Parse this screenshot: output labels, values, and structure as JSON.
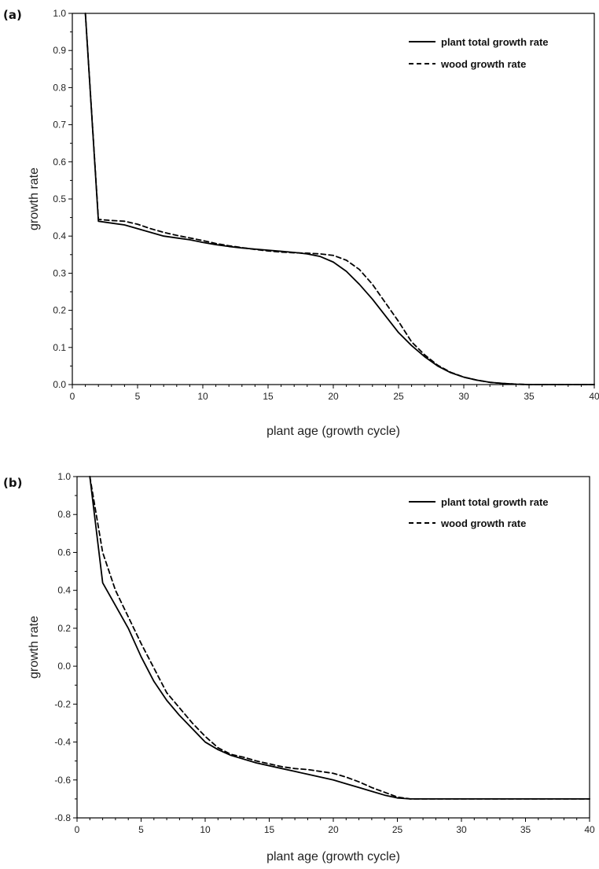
{
  "chart_data": [
    {
      "type": "line",
      "panel_label": "(a)",
      "xlabel": "plant age (growth cycle)",
      "ylabel": "growth rate",
      "xlim": [
        0,
        40
      ],
      "ylim": [
        0,
        1.0
      ],
      "xticks": [
        0,
        5,
        10,
        15,
        20,
        25,
        30,
        35,
        40
      ],
      "yticks": [
        0.0,
        0.1,
        0.2,
        0.3,
        0.4,
        0.5,
        0.6,
        0.7,
        0.8,
        0.9,
        1.0
      ],
      "ytick_labels": [
        "0.0",
        "0.1",
        "0.2",
        "0.3",
        "0.4",
        "0.5",
        "0.6",
        "0.7",
        "0.8",
        "0.9",
        "1.0"
      ],
      "grid": false,
      "legend_position": "top-right",
      "series": [
        {
          "name": "plant total growth rate",
          "style": "solid",
          "x": [
            1,
            2,
            3,
            4,
            5,
            6,
            7,
            8,
            9,
            10,
            11,
            12,
            13,
            14,
            15,
            16,
            17,
            18,
            19,
            20,
            21,
            22,
            23,
            24,
            25,
            26,
            27,
            28,
            29,
            30,
            31,
            32,
            33,
            34,
            35,
            36,
            37,
            38,
            39,
            40
          ],
          "y": [
            1.0,
            0.44,
            0.435,
            0.43,
            0.42,
            0.41,
            0.4,
            0.395,
            0.39,
            0.383,
            0.377,
            0.372,
            0.368,
            0.365,
            0.362,
            0.359,
            0.356,
            0.352,
            0.345,
            0.33,
            0.305,
            0.27,
            0.23,
            0.185,
            0.14,
            0.105,
            0.075,
            0.05,
            0.032,
            0.02,
            0.012,
            0.006,
            0.003,
            0.001,
            0.0,
            0.0,
            0.0,
            0.0,
            0.0,
            0.0
          ]
        },
        {
          "name": "wood growth rate",
          "style": "dashed",
          "x": [
            1,
            2,
            3,
            4,
            5,
            6,
            7,
            8,
            9,
            10,
            11,
            12,
            13,
            14,
            15,
            16,
            17,
            18,
            19,
            20,
            21,
            22,
            23,
            24,
            25,
            26,
            27,
            28,
            29,
            30,
            31,
            32,
            33,
            34,
            35,
            36,
            37,
            38,
            39,
            40
          ],
          "y": [
            1.0,
            0.445,
            0.442,
            0.44,
            0.432,
            0.42,
            0.41,
            0.402,
            0.395,
            0.388,
            0.38,
            0.374,
            0.369,
            0.364,
            0.36,
            0.357,
            0.355,
            0.354,
            0.352,
            0.348,
            0.335,
            0.31,
            0.27,
            0.22,
            0.17,
            0.115,
            0.08,
            0.052,
            0.033,
            0.02,
            0.012,
            0.006,
            0.003,
            0.001,
            0.0,
            0.0,
            0.0,
            0.0,
            0.0,
            0.0
          ]
        }
      ]
    },
    {
      "type": "line",
      "panel_label": "(b)",
      "xlabel": "plant age (growth cycle)",
      "ylabel": "growth rate",
      "xlim": [
        0,
        40
      ],
      "ylim": [
        -0.8,
        1.0
      ],
      "xticks": [
        0,
        5,
        10,
        15,
        20,
        25,
        30,
        35,
        40
      ],
      "yticks": [
        -0.8,
        -0.6,
        -0.4,
        -0.2,
        0.0,
        0.2,
        0.4,
        0.6,
        0.8,
        1.0
      ],
      "ytick_labels": [
        "-0.8",
        "-0.6",
        "-0.4",
        "-0.2",
        "0.0",
        "0.2",
        "0.4",
        "0.6",
        "0.8",
        "1.0"
      ],
      "grid": false,
      "legend_position": "top-right",
      "series": [
        {
          "name": "plant total growth rate",
          "style": "solid",
          "x": [
            1,
            2,
            3,
            4,
            5,
            6,
            7,
            8,
            9,
            10,
            11,
            12,
            13,
            14,
            15,
            16,
            17,
            18,
            19,
            20,
            21,
            22,
            23,
            24,
            25,
            26,
            27,
            28,
            29,
            30,
            31,
            32,
            33,
            34,
            35,
            36,
            37,
            38,
            39,
            40
          ],
          "y": [
            1.0,
            0.44,
            0.32,
            0.2,
            0.05,
            -0.08,
            -0.18,
            -0.26,
            -0.33,
            -0.4,
            -0.44,
            -0.47,
            -0.49,
            -0.51,
            -0.525,
            -0.54,
            -0.555,
            -0.57,
            -0.585,
            -0.6,
            -0.62,
            -0.64,
            -0.66,
            -0.68,
            -0.695,
            -0.7,
            -0.7,
            -0.7,
            -0.7,
            -0.7,
            -0.7,
            -0.7,
            -0.7,
            -0.7,
            -0.7,
            -0.7,
            -0.7,
            -0.7,
            -0.7,
            -0.7
          ]
        },
        {
          "name": "wood growth rate",
          "style": "dashed",
          "x": [
            1,
            2,
            3,
            4,
            5,
            6,
            7,
            8,
            9,
            10,
            11,
            12,
            13,
            14,
            15,
            16,
            17,
            18,
            19,
            20,
            21,
            22,
            23,
            24,
            25,
            26,
            27,
            28,
            29,
            30,
            31,
            32,
            33,
            34,
            35,
            36,
            37,
            38,
            39,
            40
          ],
          "y": [
            1.0,
            0.6,
            0.4,
            0.26,
            0.12,
            -0.01,
            -0.14,
            -0.22,
            -0.3,
            -0.37,
            -0.43,
            -0.465,
            -0.48,
            -0.5,
            -0.515,
            -0.53,
            -0.54,
            -0.545,
            -0.555,
            -0.565,
            -0.585,
            -0.61,
            -0.64,
            -0.665,
            -0.69,
            -0.7,
            -0.7,
            -0.7,
            -0.7,
            -0.7,
            -0.7,
            -0.7,
            -0.7,
            -0.7,
            -0.7,
            -0.7,
            -0.7,
            -0.7,
            -0.7,
            -0.7
          ]
        }
      ]
    }
  ]
}
